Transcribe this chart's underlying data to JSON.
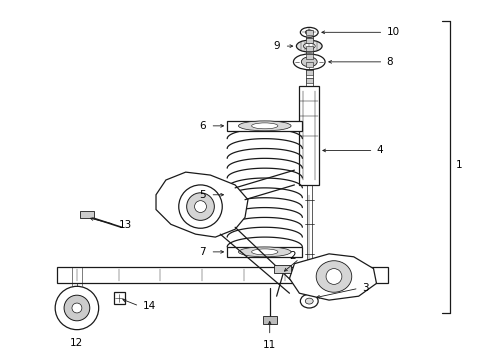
{
  "bg_color": "#ffffff",
  "line_color": "#1a1a1a",
  "label_color": "#000000",
  "lw": 0.9,
  "figsize": [
    4.89,
    3.6
  ],
  "dpi": 100
}
